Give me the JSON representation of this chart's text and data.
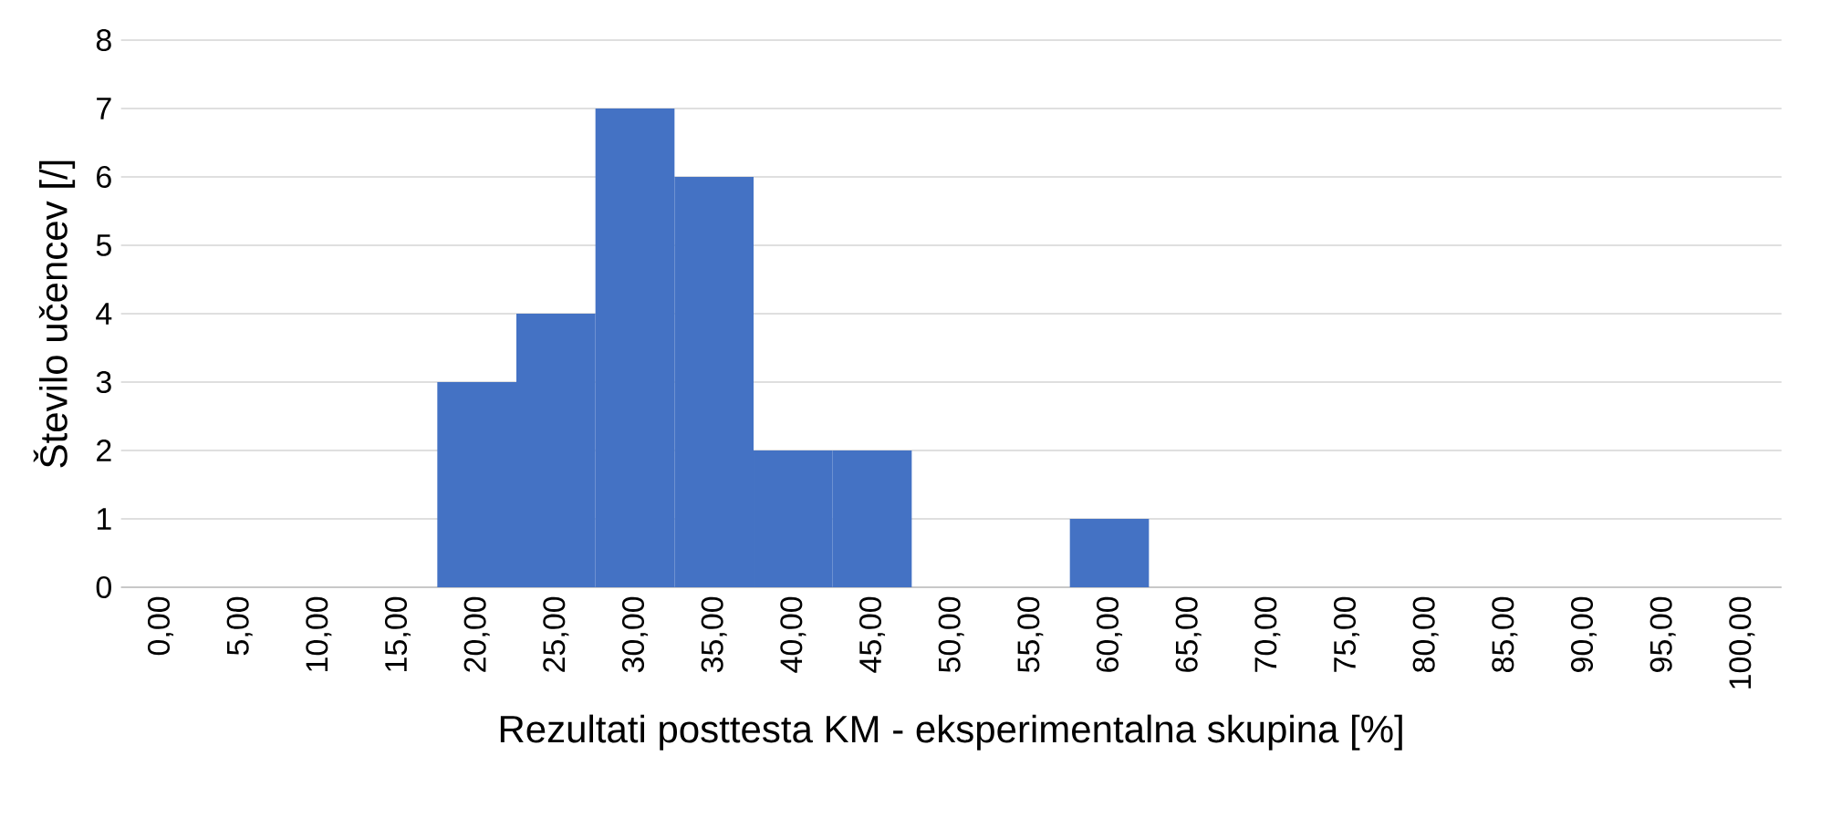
{
  "chart_data": {
    "type": "bar",
    "xlabel": "Rezultati posttesta KM - eksperimentalna skupina [%]",
    "ylabel": "Število učencev [/]",
    "categories": [
      "0,00",
      "5,00",
      "10,00",
      "15,00",
      "20,00",
      "25,00",
      "30,00",
      "35,00",
      "40,00",
      "45,00",
      "50,00",
      "55,00",
      "60,00",
      "65,00",
      "70,00",
      "75,00",
      "80,00",
      "85,00",
      "90,00",
      "95,00",
      "100,00"
    ],
    "values": [
      0,
      0,
      0,
      0,
      3,
      4,
      7,
      6,
      2,
      2,
      0,
      0,
      1,
      0,
      0,
      0,
      0,
      0,
      0,
      0,
      0
    ],
    "color": "#4472c4",
    "ylim": [
      0,
      8
    ],
    "yticks": [
      0,
      1,
      2,
      3,
      4,
      5,
      6,
      7,
      8
    ],
    "grid": "y"
  }
}
